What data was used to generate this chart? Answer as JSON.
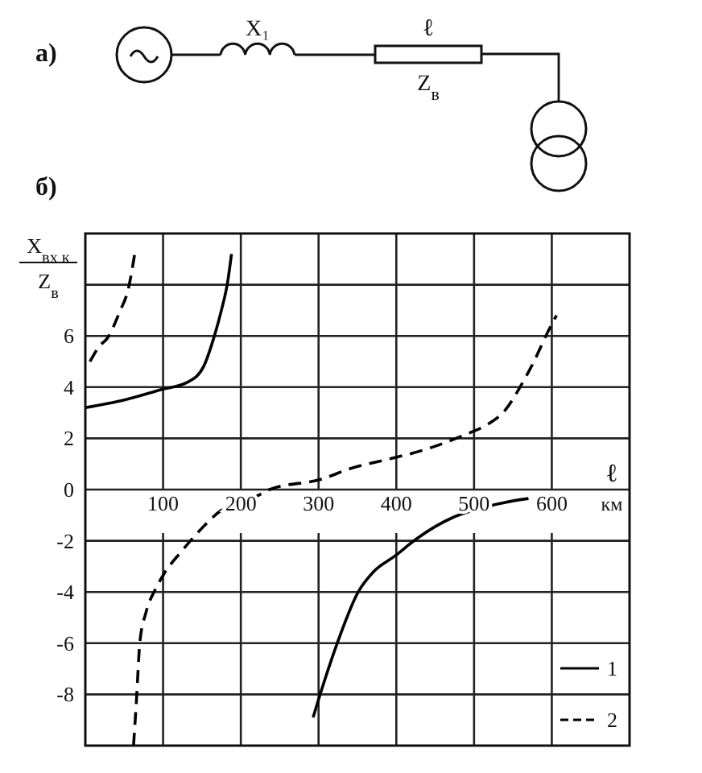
{
  "chart_data": {
    "type": "line",
    "xlabel": "ℓ",
    "ylabel": "X$_{вх к}$\nZ$_{в}$",
    "annotations": [
      "а)",
      "б)",
      "X₁",
      "ℓ",
      "Z$_{в}$",
      "км"
    ],
    "xlim": [
      0,
      700
    ],
    "ylim": [
      -10,
      10
    ],
    "xticks": [
      100,
      200,
      300,
      400,
      500,
      600
    ],
    "yticks": [
      -8,
      -6,
      -4,
      -2,
      0,
      2,
      4,
      6,
      {
        "value": 8,
        "label": null
      }
    ],
    "grid": true,
    "legend": "bottom right",
    "series": [
      {
        "name": "1",
        "color": "#000000",
        "line_style": "solid",
        "x": [
          0,
          50,
          97,
          132,
          152,
          165,
          175,
          183,
          188,
          240,
          293,
          301,
          324,
          351,
          371,
          398,
          427,
          472,
          500,
          540,
          570
        ],
        "values": [
          3.2,
          3.5,
          3.9,
          4.2,
          4.8,
          5.9,
          7.0,
          8.1,
          9.2,
          null,
          -8.9,
          -8.1,
          -6.0,
          -4.0,
          -3.2,
          -2.6,
          -1.9,
          -1.1,
          -0.8,
          -0.5,
          -0.35
        ]
      },
      {
        "name": "2",
        "color": "#000000",
        "line_style": "dashed",
        "x": [
          6,
          18,
          28,
          45,
          55,
          64,
          63,
          62,
          66,
          70,
          78,
          90,
          101,
          124,
          144,
          173,
          221,
          237,
          303,
          344,
          392,
          441,
          493,
          515,
          540,
          561,
          577,
          594,
          606
        ],
        "values": [
          5.0,
          5.6,
          5.9,
          7.0,
          7.8,
          9.3,
          null,
          -10,
          -8.1,
          -6.0,
          -4.8,
          -3.9,
          -3.3,
          -2.4,
          -1.7,
          -0.85,
          -0.25,
          0,
          0.4,
          0.85,
          1.2,
          1.6,
          2.2,
          2.5,
          3.1,
          4.1,
          5.0,
          6.1,
          6.8
        ]
      }
    ]
  }
}
